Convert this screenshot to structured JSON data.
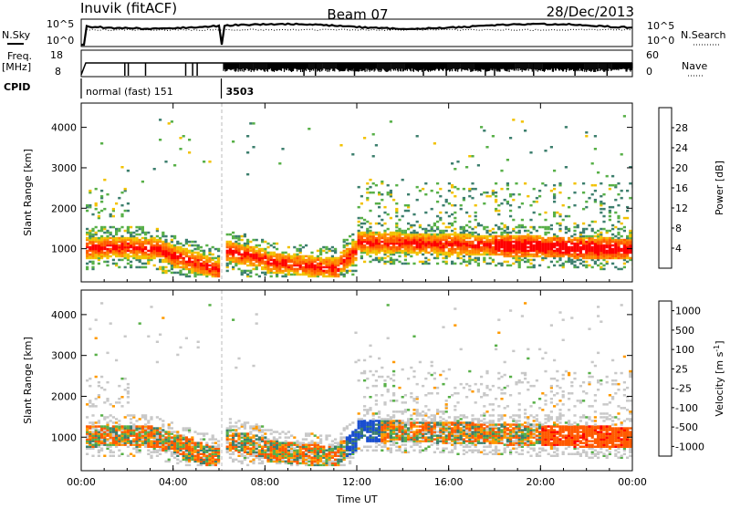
{
  "header": {
    "left": "Inuvik (fitACF)",
    "center": "Beam 07",
    "right": "28/Dec/2013"
  },
  "left_labels": {
    "nsky": "N.Sky",
    "nsky_hi": "10^5",
    "nsky_lo": "10^0",
    "freq": "Freq.",
    "freq_unit": "[MHz]",
    "freq_hi": "18",
    "freq_lo": "8",
    "cpid": "CPID"
  },
  "right_labels": {
    "nsearch_hi": "10^5",
    "nsearch_lo": "10^0",
    "nsearch": "N.Search",
    "nave_hi": "60",
    "nave_lo": "0",
    "nave": "Nave"
  },
  "cpid_segments": [
    {
      "label": "normal (fast) 151",
      "start_hour": 0,
      "end_hour": 6.1
    },
    {
      "label": "3503",
      "start_hour": 6.1,
      "end_hour": 24
    }
  ],
  "colors": {
    "power": [
      "#1515e6",
      "#2a4db8",
      "#3d7f6e",
      "#58b048",
      "#f2c200",
      "#ff8a00",
      "#ff5a00",
      "#ff0000"
    ],
    "velocity": [
      "#ff0000",
      "#ff5a00",
      "#ff9a00",
      "#f2c200",
      "#c8c8c8",
      "#58b048",
      "#3d7f6e",
      "#1a4fd0"
    ]
  },
  "chart_data": [
    {
      "type": "heatmap",
      "name": "power",
      "x_ticks": [
        "00:00",
        "04:00",
        "08:00",
        "12:00",
        "16:00",
        "20:00",
        "00:00"
      ],
      "xlim_hours": [
        0,
        24
      ],
      "ylabel": "Slant Range [km]",
      "y_ticks": [
        "1000",
        "2000",
        "3000",
        "4000"
      ],
      "ylim": [
        180,
        4600
      ],
      "colorbar_label": "Power [dB]",
      "colorbar_ticks": [
        "4",
        "8",
        "12",
        "16",
        "20",
        "24",
        "28"
      ],
      "colorbar_range": [
        0,
        32
      ]
    },
    {
      "type": "heatmap",
      "name": "velocity",
      "x_ticks": [
        "00:00",
        "04:00",
        "08:00",
        "12:00",
        "16:00",
        "20:00",
        "00:00"
      ],
      "xlim_hours": [
        0,
        24
      ],
      "xlabel": "Time UT",
      "ylabel": "Slant Range [km]",
      "y_ticks": [
        "1000",
        "2000",
        "3000",
        "4000"
      ],
      "ylim": [
        180,
        4600
      ],
      "colorbar_label": "Velocity [m s",
      "colorbar_label_sup": "-1",
      "colorbar_label_end": "]",
      "colorbar_ticks": [
        "1000",
        "500",
        "100",
        "25",
        "-25",
        "-100",
        "-500",
        "-1000"
      ]
    }
  ]
}
